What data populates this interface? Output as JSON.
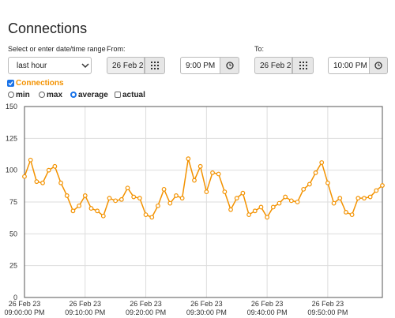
{
  "header": {
    "title": "Connections"
  },
  "controls": {
    "range_label": "Select or enter date/time range",
    "range_select": "last hour",
    "from_label": "From:",
    "from_date": "26 Feb 2",
    "from_time": "9:00 PM",
    "to_label": "To:",
    "to_date": "26 Feb 2",
    "to_time": "10:00 PM"
  },
  "options": {
    "modes": [
      "min",
      "max",
      "average"
    ],
    "selected_mode": 2,
    "actual": "actual"
  },
  "chart_data": {
    "type": "line",
    "categories": [
      [
        "26 Feb 23",
        "09:00:00 PM"
      ],
      null,
      null,
      null,
      null,
      null,
      null,
      null,
      null,
      null,
      [
        "26 Feb 23",
        "09:10:00 PM"
      ],
      null,
      null,
      null,
      null,
      null,
      null,
      null,
      null,
      null,
      [
        "26 Feb 23",
        "09:20:00 PM"
      ],
      null,
      null,
      null,
      null,
      null,
      null,
      null,
      null,
      null,
      [
        "26 Feb 23",
        "09:30:00 PM"
      ],
      null,
      null,
      null,
      null,
      null,
      null,
      null,
      null,
      null,
      [
        "26 Feb 23",
        "09:40:00 PM"
      ],
      null,
      null,
      null,
      null,
      null,
      null,
      null,
      null,
      null,
      [
        "26 Feb 23",
        "09:50:00 PM"
      ],
      null,
      null,
      null,
      null,
      null,
      null,
      null,
      null,
      null
    ],
    "series": [
      {
        "name": "Connections",
        "color": "#f39200",
        "values": [
          95,
          108,
          91,
          90,
          100,
          103,
          90,
          80,
          68,
          72,
          80,
          70,
          68,
          64,
          78,
          76,
          77,
          86,
          79,
          78,
          65,
          63,
          72,
          85,
          74,
          80,
          78,
          109,
          92,
          103,
          83,
          98,
          97,
          83,
          69,
          78,
          82,
          65,
          68,
          71,
          63,
          71,
          74,
          79,
          76,
          75,
          85,
          89,
          98,
          106,
          90,
          74,
          78,
          67,
          65,
          78,
          78,
          79,
          84,
          88
        ]
      }
    ],
    "ylim": [
      0,
      150
    ],
    "yticks": [
      0,
      25,
      50,
      75,
      100,
      125,
      150
    ],
    "grid": true
  }
}
